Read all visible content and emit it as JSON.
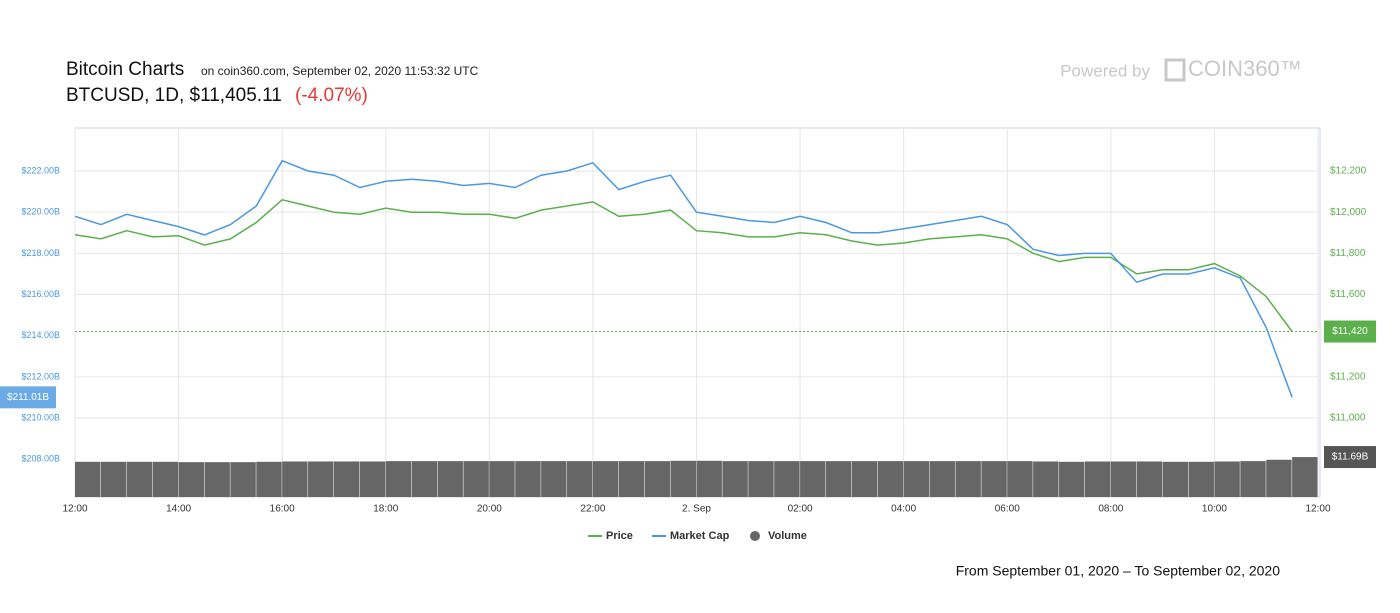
{
  "header": {
    "title": "Bitcoin Charts",
    "source": "on coin360.com, September 02, 2020 11:53:32 UTC",
    "ticker": "BTCUSD, 1D, $11,405.11",
    "change": "(-4.07%)",
    "powered_by": "Powered by",
    "logo": "COIN360™"
  },
  "chart_data": {
    "type": "line",
    "categories": [
      "12:00",
      null,
      null,
      null,
      "14:00",
      null,
      null,
      null,
      "16:00",
      null,
      null,
      null,
      "18:00",
      null,
      null,
      null,
      "20:00",
      null,
      null,
      null,
      "22:00",
      null,
      null,
      null,
      "2. Sep",
      null,
      null,
      null,
      "02:00",
      null,
      null,
      null,
      "04:00",
      null,
      null,
      null,
      "06:00",
      null,
      null,
      null,
      "08:00",
      null,
      null,
      null,
      "10:00",
      null,
      null,
      null,
      "12:00"
    ],
    "series": [
      {
        "name": "Price",
        "color": "#5cb04c",
        "axis": "y2",
        "values": [
          11890,
          11870,
          11910,
          11880,
          11885,
          11840,
          11870,
          11950,
          12060,
          12030,
          12000,
          11990,
          12020,
          12000,
          12000,
          11990,
          11990,
          11970,
          12010,
          12030,
          12050,
          11980,
          11990,
          12010,
          11910,
          11900,
          11880,
          11880,
          11900,
          11890,
          11860,
          11840,
          11850,
          11870,
          11880,
          11890,
          11870,
          11800,
          11760,
          11780,
          11780,
          11700,
          11720,
          11720,
          11750,
          11690,
          11590,
          11420,
          null
        ]
      },
      {
        "name": "Market Cap",
        "color": "#4a98e0",
        "values": [
          219.8,
          219.4,
          219.9,
          219.6,
          219.3,
          218.9,
          219.4,
          220.3,
          222.5,
          222.0,
          221.8,
          221.2,
          221.5,
          221.6,
          221.5,
          221.3,
          221.4,
          221.2,
          221.8,
          222.0,
          222.4,
          221.1,
          221.5,
          221.8,
          220.0,
          219.8,
          219.6,
          219.5,
          219.8,
          219.5,
          219.0,
          219.0,
          219.2,
          219.4,
          219.6,
          219.8,
          219.4,
          218.2,
          217.9,
          218.0,
          218.0,
          216.6,
          217.0,
          217.0,
          217.3,
          216.8,
          214.4,
          211.01,
          null
        ]
      },
      {
        "name": "Volume",
        "color": "#666666",
        "axis": "volume",
        "values": [
          10.3,
          10.3,
          10.3,
          10.3,
          10.2,
          10.2,
          10.2,
          10.3,
          10.4,
          10.4,
          10.4,
          10.4,
          10.5,
          10.5,
          10.5,
          10.5,
          10.5,
          10.5,
          10.5,
          10.5,
          10.5,
          10.5,
          10.5,
          10.6,
          10.6,
          10.5,
          10.5,
          10.5,
          10.5,
          10.5,
          10.5,
          10.5,
          10.5,
          10.5,
          10.5,
          10.5,
          10.5,
          10.4,
          10.3,
          10.4,
          10.4,
          10.4,
          10.3,
          10.3,
          10.4,
          10.5,
          10.9,
          11.69,
          null
        ]
      }
    ],
    "ylim": [
      206.17,
      224.09
    ],
    "yticks": [
      {
        "value": 208,
        "label": "$208.00B"
      },
      {
        "value": 210,
        "label": "$210.00B"
      },
      {
        "value": 212,
        "label": "$212.00B"
      },
      {
        "value": 214,
        "label": "$214.00B"
      },
      {
        "value": 216,
        "label": "$216.00B"
      },
      {
        "value": 218,
        "label": "$218.00B"
      },
      {
        "value": 220,
        "label": "$220.00B"
      },
      {
        "value": 222,
        "label": "$222.00B"
      }
    ],
    "y2lim": [
      10616,
      12409
    ],
    "y2ticks": [
      {
        "value": 11000,
        "label": "$11,000"
      },
      {
        "value": 11200,
        "label": "$11,200"
      },
      {
        "value": 11420,
        "label": "$11,420"
      },
      {
        "value": 11600,
        "label": "$11,600"
      },
      {
        "value": 11800,
        "label": "$11,800"
      },
      {
        "value": 12000,
        "label": "$12,000"
      },
      {
        "value": 12200,
        "label": "$12,200"
      }
    ],
    "volume_lim": [
      0,
      108
    ],
    "last_values": {
      "market_cap": {
        "value": 211.01,
        "label": "$211.01B"
      },
      "price": {
        "value": 11420,
        "label": "$11,420"
      },
      "volume": {
        "value": 11.69,
        "label": "$11.69B"
      }
    },
    "grid": true,
    "legend": "bottom"
  },
  "footer": "From September 01, 2020 – To September 02, 2020"
}
